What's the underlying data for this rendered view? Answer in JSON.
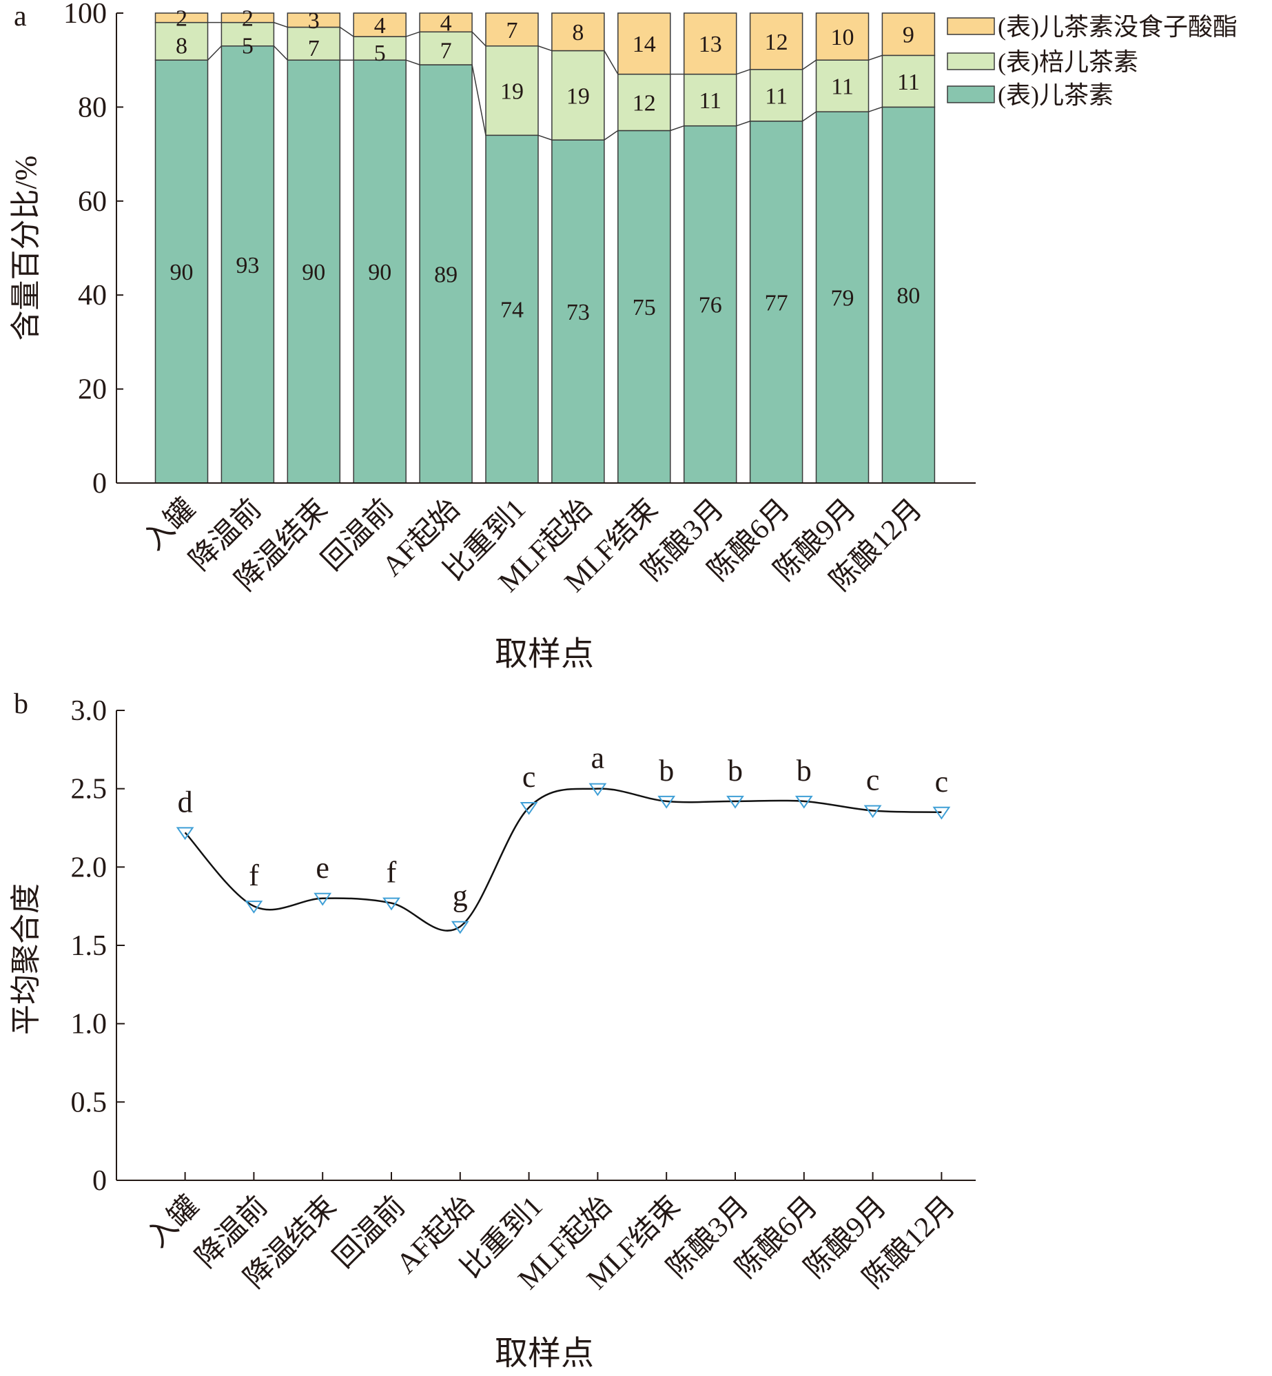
{
  "chart_data": [
    {
      "panel": "a",
      "type": "bar",
      "stacked": true,
      "categories": [
        "入罐",
        "降温前",
        "降温结束",
        "回温前",
        "AF起始",
        "比重到1",
        "MLF起始",
        "MLF结束",
        "陈酿3月",
        "陈酿6月",
        "陈酿9月",
        "陈酿12月"
      ],
      "series": [
        {
          "name": "(表)儿茶素",
          "color": "#88c5ae",
          "values": [
            90,
            93,
            90,
            90,
            89,
            74,
            73,
            75,
            76,
            77,
            79,
            80
          ]
        },
        {
          "name": "(表)棓儿茶素",
          "color": "#d5e9bb",
          "values": [
            8,
            5,
            7,
            5,
            7,
            19,
            19,
            12,
            11,
            11,
            11,
            11
          ]
        },
        {
          "name": "(表)儿茶素没食子酸酯",
          "color": "#fad690",
          "values": [
            2,
            2,
            3,
            4,
            4,
            7,
            8,
            14,
            13,
            12,
            10,
            9
          ]
        }
      ],
      "xlabel": "取样点",
      "ylabel": "含量百分比/%",
      "ylim": [
        0,
        100
      ],
      "yticks": [
        0,
        20,
        40,
        60,
        80,
        100
      ],
      "legend": "top-right",
      "grid": false
    },
    {
      "panel": "b",
      "type": "line",
      "categories": [
        "入罐",
        "降温前",
        "降温结束",
        "回温前",
        "AF起始",
        "比重到1",
        "MLF起始",
        "MLF结束",
        "陈酿3月",
        "陈酿6月",
        "陈酿9月",
        "陈酿12月"
      ],
      "values": [
        2.22,
        1.75,
        1.8,
        1.77,
        1.62,
        2.38,
        2.5,
        2.42,
        2.42,
        2.42,
        2.36,
        2.35
      ],
      "annotations": [
        "d",
        "f",
        "e",
        "f",
        "g",
        "c",
        "a",
        "b",
        "b",
        "b",
        "c",
        "c"
      ],
      "marker_color": "#3f9fd6",
      "xlabel": "取样点",
      "ylabel": "平均聚合度",
      "ylim": [
        0,
        3.0
      ],
      "yticks": [
        "0",
        "0.5",
        "1.0",
        "1.5",
        "2.0",
        "2.5",
        "3.0"
      ],
      "grid": false
    }
  ]
}
